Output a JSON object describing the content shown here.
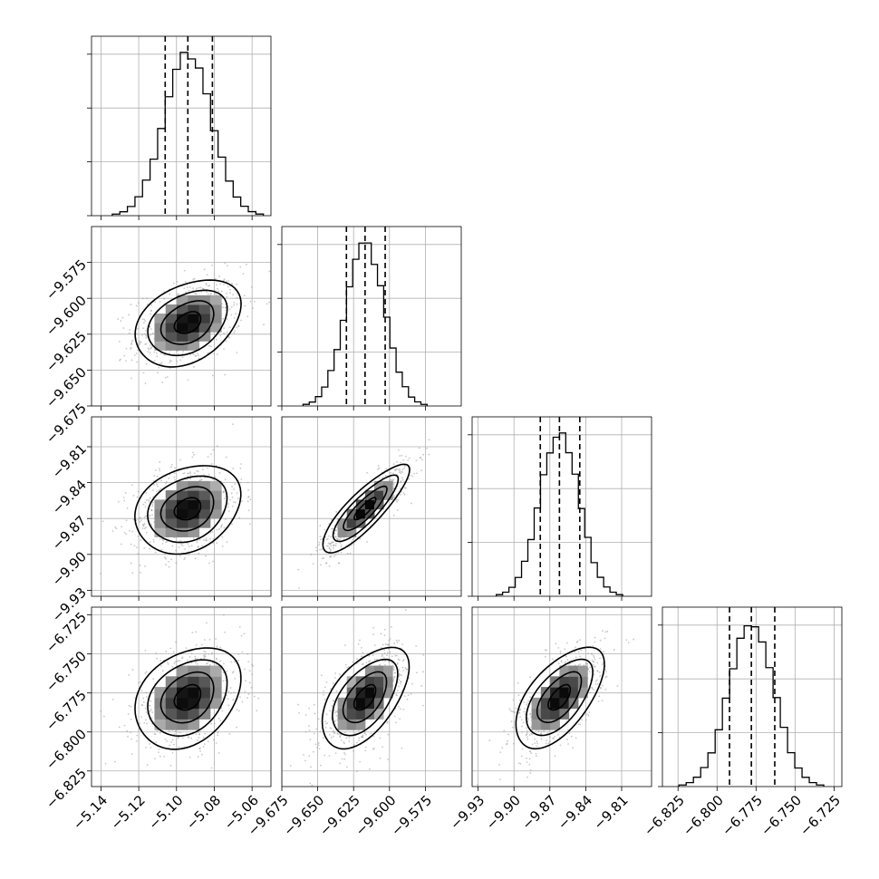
{
  "chart_data": {
    "type": "corner",
    "title": "",
    "grid": true,
    "dimensions": [
      {
        "range": [
          -5.145,
          -5.05
        ],
        "ticks": [
          -5.14,
          -5.12,
          -5.1,
          -5.08,
          -5.06
        ],
        "tick_labels": [
          "−5.14",
          "−5.12",
          "−5.10",
          "−5.08",
          "−5.06"
        ],
        "quantiles": [
          -5.106,
          -5.094,
          -5.081
        ],
        "mean": -5.094,
        "sd": 0.0125
      },
      {
        "range": [
          -9.675,
          -9.55
        ],
        "ticks": [
          -9.675,
          -9.65,
          -9.625,
          -9.6,
          -9.575
        ],
        "tick_labels": [
          "−9.675",
          "−9.650",
          "−9.625",
          "−9.600",
          "−9.575"
        ],
        "quantiles": [
          -9.63,
          -9.617,
          -9.603
        ],
        "mean": -9.617,
        "sd": 0.0135
      },
      {
        "range": [
          -9.935,
          -9.785
        ],
        "ticks": [
          -9.93,
          -9.9,
          -9.87,
          -9.84,
          -9.81
        ],
        "tick_labels": [
          "−9.93",
          "−9.90",
          "−9.87",
          "−9.84",
          "−9.81"
        ],
        "quantiles": [
          -9.878,
          -9.862,
          -9.845
        ],
        "mean": -9.862,
        "sd": 0.0165
      },
      {
        "range": [
          -6.835,
          -6.72
        ],
        "ticks": [
          -6.825,
          -6.8,
          -6.775,
          -6.75,
          -6.725
        ],
        "tick_labels": [
          "−6.825",
          "−6.800",
          "−6.775",
          "−6.750",
          "−6.725"
        ],
        "quantiles": [
          -6.792,
          -6.778,
          -6.763
        ],
        "mean": -6.778,
        "sd": 0.0145
      }
    ],
    "correlations": [
      [
        1.0,
        0.35,
        0.25,
        0.3
      ],
      [
        0.35,
        1.0,
        0.85,
        0.55
      ],
      [
        0.25,
        0.85,
        1.0,
        0.6
      ],
      [
        0.3,
        0.55,
        0.6,
        1.0
      ]
    ],
    "histogram_bins": 20,
    "contour_levels_sigma": [
      0.5,
      1.0,
      1.5,
      2.0
    ]
  }
}
